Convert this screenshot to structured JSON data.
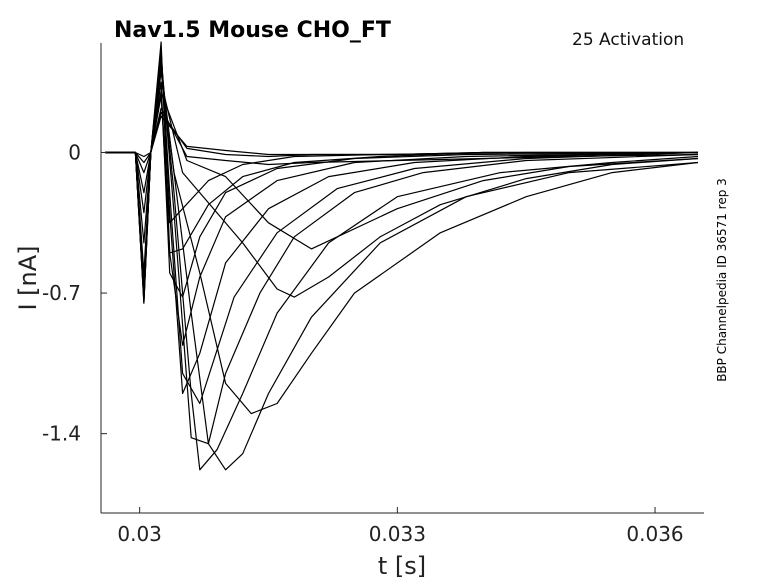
{
  "chart_data": {
    "type": "line",
    "title": "Nav1.5  Mouse  CHO_FT",
    "protocol_label": "25  Activation",
    "side_note": "BBP Channelpedia ID 36571 rep 3",
    "xlabel": "t [s]",
    "ylabel": "I [nA]",
    "xlim": [
      0.02955,
      0.03657
    ],
    "ylim": [
      -1.795,
      0.545
    ],
    "x_ticks": [
      0.03,
      0.033,
      0.036
    ],
    "x_tick_labels": [
      "0.03",
      "0.033",
      "0.036"
    ],
    "y_ticks": [
      0,
      -0.7,
      -1.4
    ],
    "y_tick_labels": [
      "0",
      "-0.7",
      "-1.4"
    ],
    "grid": false,
    "line_color": "#000000",
    "series": [
      {
        "x": [
          0.0296,
          0.02995,
          0.03005,
          0.03013,
          0.03025,
          0.03055,
          0.031,
          0.0315,
          0.032,
          0.033,
          0.034,
          0.035,
          0.0365
        ],
        "y": [
          0,
          0,
          -0.02,
          0,
          0.2,
          0.02,
          -0.01,
          -0.02,
          -0.01,
          -0.01,
          0,
          0,
          0
        ]
      },
      {
        "x": [
          0.0296,
          0.02995,
          0.03005,
          0.03013,
          0.03025,
          0.03055,
          0.031,
          0.0315,
          0.032,
          0.033,
          0.034,
          0.035,
          0.0365
        ],
        "y": [
          0,
          0,
          -0.05,
          0,
          0.18,
          0.03,
          0.01,
          -0.01,
          -0.01,
          -0.01,
          0,
          0,
          0
        ]
      },
      {
        "x": [
          0.0296,
          0.02995,
          0.03005,
          0.03013,
          0.03025,
          0.03055,
          0.031,
          0.0315,
          0.032,
          0.033,
          0.034,
          0.035,
          0.0365
        ],
        "y": [
          0,
          0,
          -0.1,
          0,
          0.22,
          -0.02,
          -0.04,
          -0.06,
          -0.05,
          -0.04,
          -0.03,
          -0.02,
          -0.01
        ]
      },
      {
        "x": [
          0.0296,
          0.02995,
          0.03005,
          0.03013,
          0.03025,
          0.03055,
          0.031,
          0.0315,
          0.032,
          0.033,
          0.034,
          0.035,
          0.0365
        ],
        "y": [
          0,
          0,
          -0.2,
          0,
          0.3,
          -0.04,
          -0.12,
          -0.35,
          -0.48,
          -0.28,
          -0.14,
          -0.07,
          -0.03
        ]
      },
      {
        "x": [
          0.0296,
          0.02995,
          0.03005,
          0.03013,
          0.03025,
          0.0305,
          0.0312,
          0.0316,
          0.0318,
          0.0322,
          0.0328,
          0.0335,
          0.0345,
          0.0355,
          0.0365
        ],
        "y": [
          0,
          0,
          -0.3,
          0,
          0.35,
          -0.1,
          -0.45,
          -0.68,
          -0.72,
          -0.62,
          -0.42,
          -0.26,
          -0.13,
          -0.06,
          -0.03
        ]
      },
      {
        "x": [
          0.0296,
          0.02995,
          0.03005,
          0.03013,
          0.03025,
          0.0304,
          0.0307,
          0.031,
          0.0313,
          0.0316,
          0.032,
          0.0325,
          0.0335,
          0.0345,
          0.0355,
          0.0365
        ],
        "y": [
          0,
          0,
          -0.45,
          0,
          0.4,
          -0.1,
          -0.6,
          -1.15,
          -1.3,
          -1.25,
          -1.0,
          -0.7,
          -0.4,
          -0.22,
          -0.1,
          -0.05
        ]
      },
      {
        "x": [
          0.0296,
          0.02995,
          0.03005,
          0.03013,
          0.03025,
          0.0304,
          0.0306,
          0.0308,
          0.031,
          0.0312,
          0.0315,
          0.032,
          0.0328,
          0.0338,
          0.035,
          0.0365
        ],
        "y": [
          0,
          0,
          -0.6,
          0,
          0.42,
          -0.1,
          -0.8,
          -1.45,
          -1.58,
          -1.5,
          -1.2,
          -0.82,
          -0.45,
          -0.22,
          -0.1,
          -0.05
        ]
      },
      {
        "x": [
          0.0296,
          0.02995,
          0.03005,
          0.03013,
          0.03025,
          0.0304,
          0.0306,
          0.0307,
          0.0309,
          0.0312,
          0.0316,
          0.0322,
          0.033,
          0.0342,
          0.0355,
          0.0365
        ],
        "y": [
          0,
          0,
          -0.75,
          0,
          0.45,
          -0.2,
          -1.2,
          -1.58,
          -1.48,
          -1.2,
          -0.8,
          -0.45,
          -0.22,
          -0.1,
          -0.05,
          -0.02
        ]
      },
      {
        "x": [
          0.0296,
          0.02995,
          0.03005,
          0.03013,
          0.03025,
          0.0304,
          0.0306,
          0.0308,
          0.031,
          0.0314,
          0.0318,
          0.0325,
          0.0333,
          0.0345,
          0.0365
        ],
        "y": [
          0,
          0,
          -0.75,
          0,
          0.48,
          -0.3,
          -1.42,
          -1.45,
          -1.1,
          -0.7,
          -0.42,
          -0.2,
          -0.1,
          -0.04,
          -0.01
        ]
      },
      {
        "x": [
          0.0296,
          0.02995,
          0.03005,
          0.03013,
          0.03025,
          0.03035,
          0.0305,
          0.0307,
          0.0311,
          0.0316,
          0.0323,
          0.0332,
          0.0345,
          0.0365
        ],
        "y": [
          0,
          0,
          -0.74,
          0,
          0.5,
          -0.2,
          -1.1,
          -1.25,
          -0.72,
          -0.4,
          -0.18,
          -0.08,
          -0.03,
          0
        ]
      },
      {
        "x": [
          0.0296,
          0.02995,
          0.03005,
          0.03013,
          0.03025,
          0.03035,
          0.0305,
          0.0307,
          0.031,
          0.0315,
          0.0322,
          0.0332,
          0.0345,
          0.0365
        ],
        "y": [
          0,
          0,
          -0.73,
          0,
          0.52,
          -0.3,
          -1.2,
          -1.0,
          -0.55,
          -0.28,
          -0.12,
          -0.05,
          -0.02,
          0
        ]
      },
      {
        "x": [
          0.0296,
          0.02995,
          0.03005,
          0.03013,
          0.03025,
          0.03035,
          0.0305,
          0.0307,
          0.031,
          0.0316,
          0.0325,
          0.0338,
          0.0365
        ],
        "y": [
          0,
          0,
          -0.72,
          0,
          0.55,
          -0.5,
          -0.96,
          -0.62,
          -0.32,
          -0.14,
          -0.05,
          -0.02,
          0
        ]
      },
      {
        "x": [
          0.0296,
          0.02995,
          0.03005,
          0.03013,
          0.03025,
          0.03035,
          0.0305,
          0.0307,
          0.031,
          0.0316,
          0.0325,
          0.0338,
          0.0365
        ],
        "y": [
          0,
          0,
          -0.7,
          0,
          0.35,
          -0.6,
          -0.72,
          -0.42,
          -0.2,
          -0.08,
          -0.03,
          -0.01,
          0
        ]
      },
      {
        "x": [
          0.0296,
          0.02995,
          0.03005,
          0.03013,
          0.03025,
          0.03035,
          0.0305,
          0.0308,
          0.0312,
          0.0318,
          0.0328,
          0.034,
          0.0365
        ],
        "y": [
          0,
          0,
          -0.68,
          0,
          0.3,
          -0.5,
          -0.48,
          -0.26,
          -0.12,
          -0.05,
          -0.02,
          0,
          0
        ]
      },
      {
        "x": [
          0.0296,
          0.02995,
          0.03005,
          0.03013,
          0.03025,
          0.03035,
          0.0305,
          0.0308,
          0.0312,
          0.0318,
          0.0328,
          0.0345,
          0.0365
        ],
        "y": [
          0,
          0,
          -0.66,
          0,
          0.28,
          -0.35,
          -0.28,
          -0.14,
          -0.06,
          -0.02,
          -0.01,
          0,
          0
        ]
      }
    ]
  }
}
